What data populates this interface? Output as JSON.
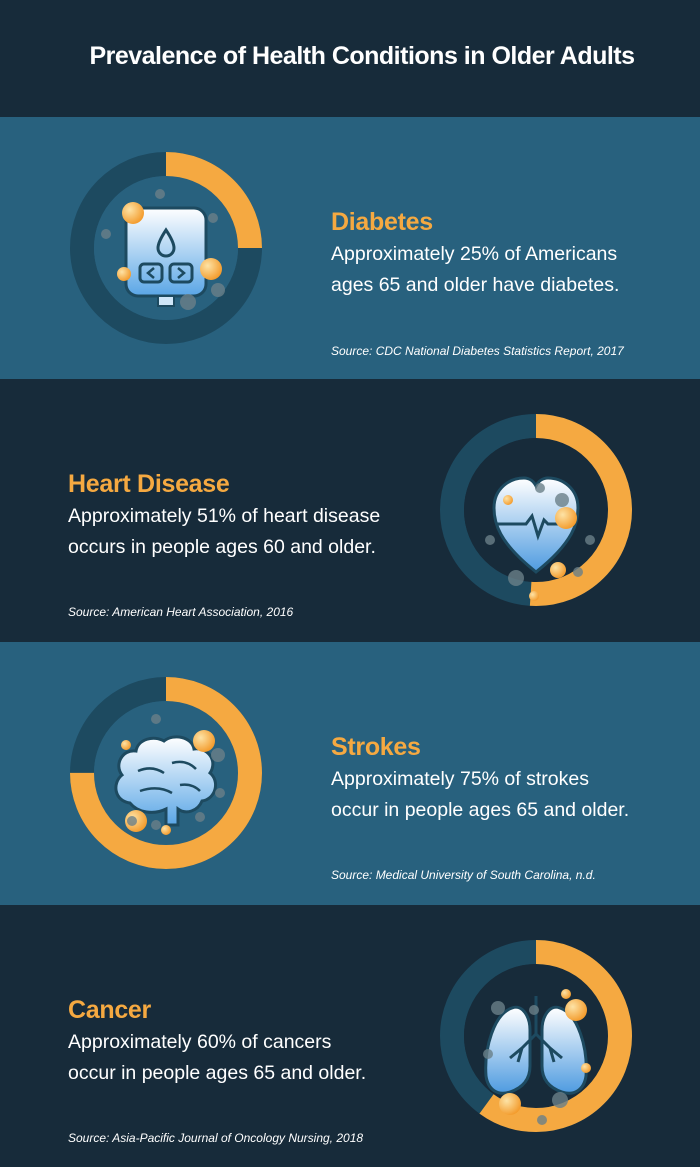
{
  "title": "Prevalence of Health Conditions in Older Adults",
  "colors": {
    "accent": "#f5a941",
    "band_light": "#28617e",
    "band_dark": "#172b3a",
    "ring_track": "#1d4a60"
  },
  "items": [
    {
      "condition": "Diabetes",
      "line1": "Approximately 25% of Americans",
      "line2": "ages 65 and older have diabetes.",
      "source": "Source: CDC National Diabetes Statistics Report, 2017",
      "percent": 25,
      "icon": "glucose-meter-icon"
    },
    {
      "condition": "Heart Disease",
      "line1": "Approximately 51% of heart disease",
      "line2": "occurs in people ages 60 and older.",
      "source": "Source: American Heart Association, 2016",
      "percent": 51,
      "icon": "heart-icon"
    },
    {
      "condition": "Strokes",
      "line1": "Approximately 75% of strokes",
      "line2": "occur in people ages 65 and older.",
      "source": "Source: Medical University of South Carolina, n.d.",
      "percent": 75,
      "icon": "brain-icon"
    },
    {
      "condition": "Cancer",
      "line1": "Approximately 60% of cancers",
      "line2": "occur in people ages 65 and older.",
      "source": "Source: Asia-Pacific Journal of Oncology Nursing, 2018",
      "percent": 60,
      "icon": "lungs-icon"
    }
  ]
}
